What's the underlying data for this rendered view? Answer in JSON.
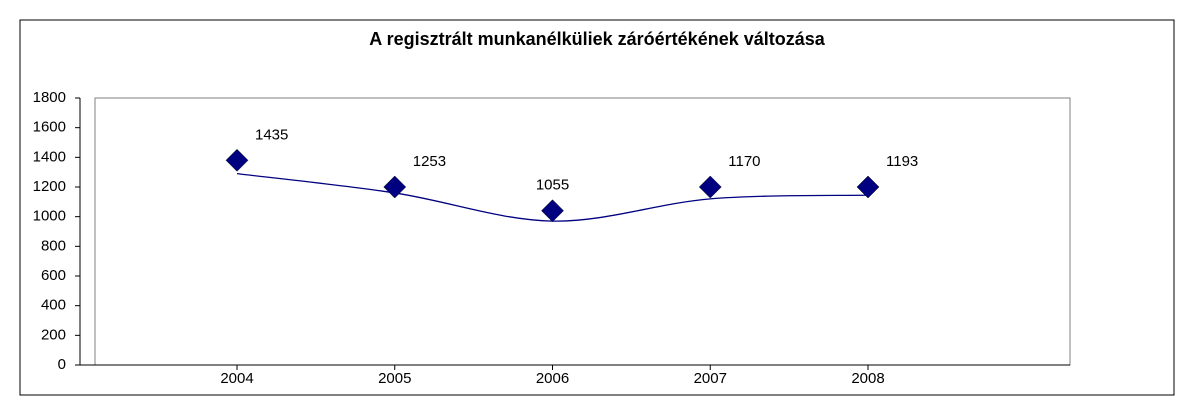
{
  "chart_data": {
    "type": "line",
    "title": "A regisztrált munkanélküliek záróértékének változása",
    "categories": [
      "2004",
      "2005",
      "2006",
      "2007",
      "2008"
    ],
    "series": [
      {
        "name": "",
        "color": "#000080",
        "values": [
          1380,
          1200,
          1040,
          1200,
          1200
        ],
        "marker": "diamond"
      },
      {
        "name": "",
        "color": "#000080",
        "values": [
          1290,
          1160,
          970,
          1120,
          1145
        ],
        "smooth": true
      }
    ],
    "annotations": [
      "1435",
      "1253",
      "1055",
      "1170",
      "1193"
    ],
    "ylim": [
      0,
      1800
    ],
    "yticks": [
      0,
      200,
      400,
      600,
      800,
      1000,
      1200,
      1400,
      1600,
      1800
    ]
  }
}
